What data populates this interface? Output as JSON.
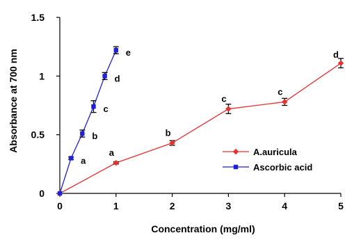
{
  "chart_data": {
    "type": "line",
    "xlabel": "Concentration (mg/ml)",
    "ylabel": "Absorbance at 700 nm",
    "xlim": [
      0,
      5
    ],
    "ylim": [
      0,
      1.5
    ],
    "xticks": [
      "0",
      "1",
      "2",
      "3",
      "4",
      "5"
    ],
    "yticks": [
      "0",
      "0.5",
      "1",
      "1.5"
    ],
    "legend_position": "center-right",
    "grid": false,
    "series": [
      {
        "name": "A.auricula",
        "color": "#e8302f",
        "marker": "diamond",
        "points": [
          {
            "x": 0,
            "y": 0.0,
            "err": 0.0,
            "label": ""
          },
          {
            "x": 1,
            "y": 0.26,
            "err": 0.01,
            "label": "a"
          },
          {
            "x": 2,
            "y": 0.43,
            "err": 0.02,
            "label": "b"
          },
          {
            "x": 3,
            "y": 0.72,
            "err": 0.04,
            "label": "c"
          },
          {
            "x": 4,
            "y": 0.78,
            "err": 0.03,
            "label": "c"
          },
          {
            "x": 5,
            "y": 1.11,
            "err": 0.04,
            "label": "d"
          }
        ]
      },
      {
        "name": "Ascorbic acid",
        "color": "#1f1fd6",
        "marker": "square",
        "points": [
          {
            "x": 0,
            "y": 0.0,
            "err": 0.0,
            "label": ""
          },
          {
            "x": 0.2,
            "y": 0.3,
            "err": 0.01,
            "label": "a"
          },
          {
            "x": 0.4,
            "y": 0.51,
            "err": 0.03,
            "label": "b"
          },
          {
            "x": 0.6,
            "y": 0.74,
            "err": 0.05,
            "label": "c"
          },
          {
            "x": 0.8,
            "y": 1.0,
            "err": 0.03,
            "label": "d"
          },
          {
            "x": 1.0,
            "y": 1.22,
            "err": 0.03,
            "label": "e"
          }
        ]
      }
    ]
  }
}
